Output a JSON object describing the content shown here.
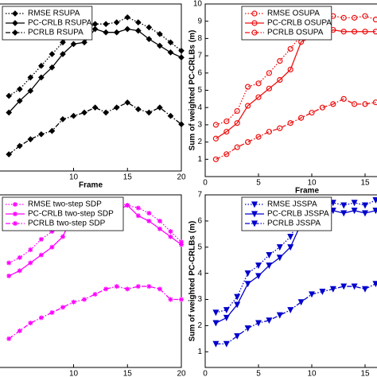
{
  "chart_data": [
    {
      "type": "line",
      "xlabel": "Frame",
      "xlim": [
        0,
        20
      ],
      "ylim": [
        0,
        10
      ],
      "xticks": [
        10,
        15,
        20
      ],
      "legend": "upper left",
      "x": [
        4,
        5,
        6,
        7,
        8,
        9,
        10,
        11,
        12,
        13,
        14,
        15,
        16,
        17,
        18,
        19,
        20
      ],
      "series": [
        {
          "name": "RMSE RSUPA",
          "color": "#000000",
          "dash": "dotted",
          "marker": "diamond",
          "values": [
            4.5,
            4.9,
            5.6,
            6.3,
            7.0,
            7.7,
            8.3,
            8.4,
            8.8,
            8.8,
            8.9,
            9.2,
            8.9,
            8.6,
            8.2,
            7.7,
            7.2
          ]
        },
        {
          "name": "PC-CRLB RSUPA",
          "color": "#000000",
          "dash": "solid",
          "marker": "diamond",
          "values": [
            3.5,
            4.2,
            4.8,
            5.6,
            6.2,
            7.0,
            7.6,
            7.7,
            8.5,
            8.3,
            8.3,
            8.5,
            8.4,
            7.9,
            7.5,
            7.1,
            6.8
          ]
        },
        {
          "name": "PCRLB RSUPA",
          "color": "#000000",
          "dash": "dashdot",
          "marker": "diamond",
          "values": [
            1.0,
            1.5,
            1.9,
            2.2,
            2.4,
            3.1,
            3.3,
            3.5,
            3.8,
            3.5,
            3.8,
            4.1,
            3.7,
            3.5,
            3.8,
            3.3,
            2.8
          ]
        }
      ]
    },
    {
      "type": "line",
      "xlabel": "Frame",
      "ylabel": "Sum of weighted PC-CRLBs (m)",
      "xlim": [
        0,
        20
      ],
      "ylim": [
        0,
        10
      ],
      "xticks": [
        0,
        5,
        10,
        15
      ],
      "yticks": [
        1,
        2,
        3,
        4,
        5,
        6,
        7,
        8,
        9,
        10
      ],
      "legend": "upper left",
      "x": [
        1,
        2,
        3,
        4,
        5,
        6,
        7,
        8,
        9,
        10,
        11,
        12,
        13,
        14,
        15,
        16
      ],
      "series": [
        {
          "name": "RMSE OSUPA",
          "color": "#ee1111",
          "dash": "dotted",
          "marker": "circle",
          "values": [
            3.0,
            3.2,
            3.8,
            5.2,
            5.4,
            6.0,
            6.7,
            7.4,
            8.2,
            8.6,
            9.0,
            9.3,
            9.2,
            9.2,
            9.3,
            9.1
          ]
        },
        {
          "name": "PC-CRLB OSUPA",
          "color": "#ee1111",
          "dash": "solid",
          "marker": "circle",
          "values": [
            2.2,
            2.6,
            3.1,
            4.1,
            4.6,
            5.1,
            5.6,
            6.2,
            7.8,
            8.1,
            8.2,
            8.5,
            8.4,
            8.4,
            8.4,
            8.4
          ]
        },
        {
          "name": "PCRLB OSUPA",
          "color": "#ee1111",
          "dash": "dashdot",
          "marker": "circle",
          "values": [
            1.0,
            1.3,
            1.7,
            2.0,
            2.3,
            2.6,
            2.8,
            3.1,
            3.4,
            3.7,
            4.0,
            4.2,
            4.5,
            4.2,
            4.2,
            4.3
          ]
        }
      ]
    },
    {
      "type": "line",
      "xlabel": "Frame",
      "xlim": [
        0,
        20
      ],
      "ylim": [
        0.4,
        7
      ],
      "xticks": [
        10,
        15,
        20
      ],
      "legend": "upper left",
      "x": [
        4,
        5,
        6,
        7,
        8,
        9,
        10,
        11,
        12,
        13,
        14,
        15,
        16,
        17,
        18,
        19,
        20
      ],
      "series": [
        {
          "name": "RMSE two-step SDP",
          "color": "#ff00ff",
          "dash": "dotted",
          "marker": "star",
          "values": [
            4.4,
            4.6,
            4.9,
            5.3,
            5.6,
            6.2,
            6.4,
            6.5,
            6.6,
            6.7,
            6.7,
            6.6,
            6.5,
            6.3,
            6.0,
            5.6,
            5.2
          ]
        },
        {
          "name": "PC-CRLB two-step SDP",
          "color": "#ff00ff",
          "dash": "solid",
          "marker": "star",
          "values": [
            3.9,
            4.1,
            4.4,
            4.7,
            5.0,
            5.4,
            6.3,
            6.3,
            6.6,
            6.5,
            6.4,
            6.6,
            6.2,
            6.0,
            5.7,
            5.4,
            5.1
          ]
        },
        {
          "name": "PCRLB two-step SDP",
          "color": "#ff00ff",
          "dash": "dashdot",
          "marker": "star",
          "values": [
            1.5,
            1.8,
            2.1,
            2.3,
            2.5,
            2.7,
            2.9,
            3.0,
            3.2,
            3.4,
            3.5,
            3.4,
            3.5,
            3.5,
            3.4,
            3.0,
            3.0
          ]
        }
      ]
    },
    {
      "type": "line",
      "xlabel": "Frame",
      "ylabel": "Sum of weighted PC-CRLBs (m)",
      "xlim": [
        0,
        20
      ],
      "ylim": [
        0.4,
        7
      ],
      "xticks": [
        0,
        5,
        10,
        15
      ],
      "yticks": [
        1,
        2,
        3,
        4,
        5,
        6,
        7
      ],
      "legend": "upper left",
      "x": [
        1,
        2,
        3,
        4,
        5,
        6,
        7,
        8,
        9,
        10,
        11,
        12,
        13,
        14,
        15,
        16
      ],
      "series": [
        {
          "name": "RMSE JSSPA",
          "color": "#0000cc",
          "dash": "dotted",
          "marker": "triangle",
          "values": [
            2.5,
            2.6,
            3.1,
            4.0,
            4.3,
            4.7,
            5.0,
            5.4,
            6.2,
            6.4,
            6.5,
            6.7,
            6.6,
            6.7,
            6.6,
            6.8
          ]
        },
        {
          "name": "PC-CRLB JSSPA",
          "color": "#0000cc",
          "dash": "solid",
          "marker": "triangle",
          "values": [
            2.1,
            2.3,
            2.8,
            3.6,
            3.9,
            4.3,
            4.6,
            5.0,
            5.9,
            6.1,
            6.2,
            6.4,
            6.3,
            6.4,
            6.3,
            6.4
          ]
        },
        {
          "name": "PCRLB JSSPA",
          "color": "#0000cc",
          "dash": "dashdot",
          "marker": "triangle",
          "values": [
            1.3,
            1.3,
            1.6,
            1.9,
            2.1,
            2.2,
            2.4,
            2.6,
            2.9,
            3.2,
            3.3,
            3.4,
            3.5,
            3.5,
            3.4,
            3.6
          ]
        }
      ]
    }
  ]
}
